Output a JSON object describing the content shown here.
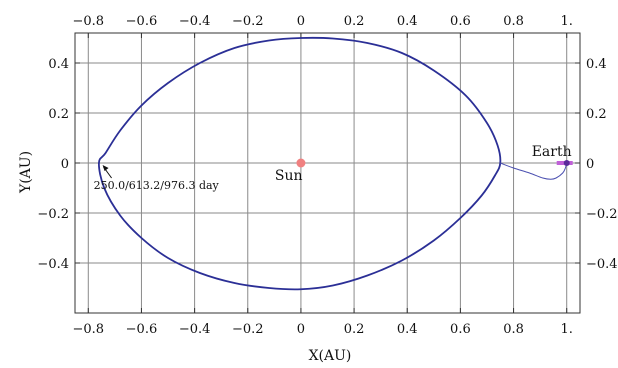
{
  "chart_data": {
    "type": "line",
    "title": "",
    "xlabel": "X(AU)",
    "ylabel": "Y(AU)",
    "xlim": [
      -0.85,
      1.05
    ],
    "ylim": [
      -0.6,
      0.52
    ],
    "x_ticks": [
      -0.8,
      -0.6,
      -0.4,
      -0.2,
      0,
      0.2,
      0.4,
      0.6,
      0.8,
      1.0
    ],
    "x_tick_labels": [
      "−0.8",
      "−0.6",
      "−0.4",
      "−0.2",
      "0",
      "0.2",
      "0.4",
      "0.6",
      "0.8",
      "1."
    ],
    "y_ticks": [
      0.4,
      0.2,
      0,
      -0.2,
      -0.4
    ],
    "y_tick_labels": [
      "0.4",
      "0.2",
      "0",
      "−0.2",
      "−0.4"
    ],
    "grid": true,
    "series": [
      {
        "color": "#2b2f96",
        "x": [
          0.74,
          0.7,
          0.62,
          0.5,
          0.38,
          0.25,
          0.12,
          0.0,
          -0.12,
          -0.25,
          -0.38,
          -0.5,
          -0.6,
          -0.68,
          -0.735,
          -0.76,
          -0.74,
          -0.68,
          -0.6,
          -0.5,
          -0.38,
          -0.25,
          -0.12,
          0.0,
          0.12,
          0.25,
          0.38,
          0.5,
          0.6,
          0.68,
          0.73,
          0.75
        ],
        "y": [
          0.07,
          0.16,
          0.27,
          0.37,
          0.44,
          0.48,
          0.498,
          0.5,
          0.49,
          0.46,
          0.4,
          0.32,
          0.23,
          0.13,
          0.04,
          0.0,
          -0.1,
          -0.21,
          -0.3,
          -0.38,
          -0.44,
          -0.48,
          -0.5,
          -0.505,
          -0.49,
          -0.45,
          -0.39,
          -0.31,
          -0.22,
          -0.13,
          -0.05,
          0.0
        ]
      },
      {
        "color": "#4a4fb0",
        "x": [
          0.75,
          0.8,
          0.86,
          0.91,
          0.94,
          0.96,
          0.985,
          0.995,
          1.0
        ],
        "y": [
          0.0,
          -0.02,
          -0.04,
          -0.06,
          -0.065,
          -0.06,
          -0.04,
          -0.02,
          0.0
        ]
      }
    ],
    "points": [
      {
        "label": "Sun",
        "x": 0.0,
        "y": 0.0,
        "color": "#f08080"
      },
      {
        "label": "Earth",
        "x": 1.0,
        "y": 0.0,
        "color": "#c060d8"
      }
    ],
    "annotations": [
      {
        "text": "250.0/613.2/976.3 day",
        "x": -0.75,
        "y": 0.0
      }
    ]
  }
}
